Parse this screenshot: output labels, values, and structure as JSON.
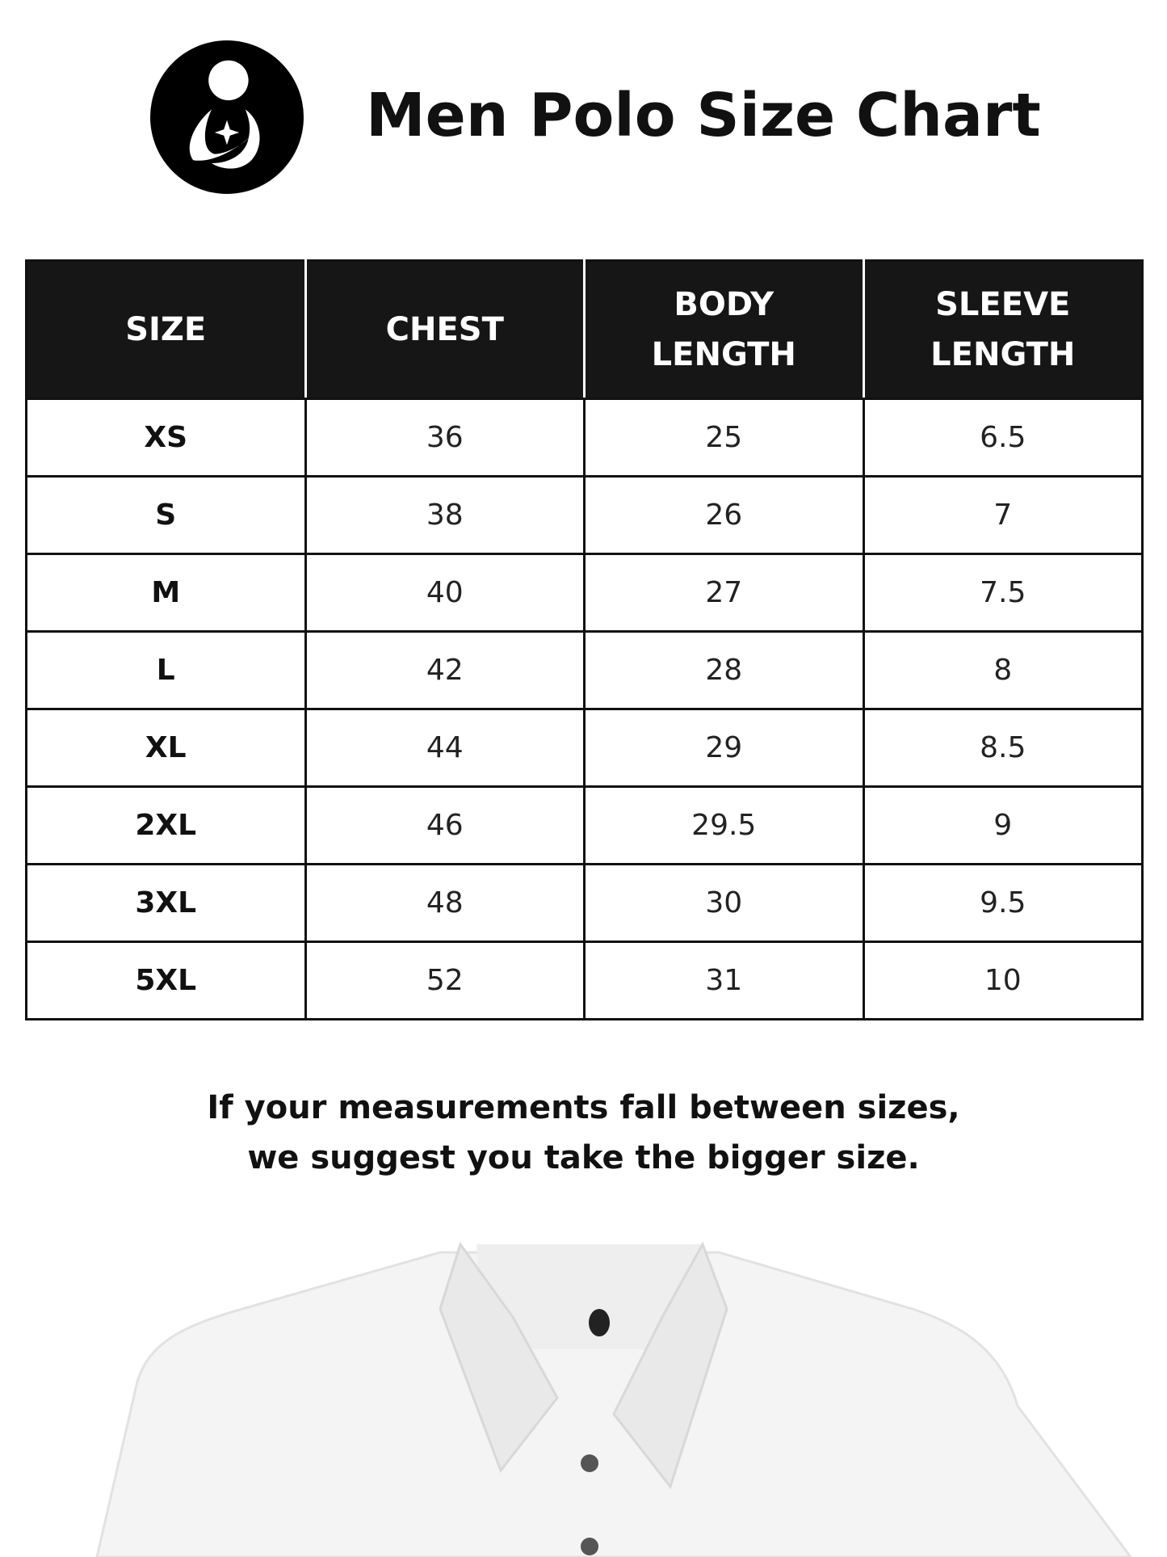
{
  "header": {
    "title": "Men Polo Size Chart",
    "logo": "mother-child-logo"
  },
  "table": {
    "columns": [
      [
        "SIZE"
      ],
      [
        "CHEST"
      ],
      [
        "BODY",
        "LENGTH"
      ],
      [
        "SLEEVE",
        "LENGTH"
      ]
    ],
    "rows": [
      [
        "XS",
        "36",
        "25",
        "6.5"
      ],
      [
        "S",
        "38",
        "26",
        "7"
      ],
      [
        "M",
        "40",
        "27",
        "7.5"
      ],
      [
        "L",
        "42",
        "28",
        "8"
      ],
      [
        "XL",
        "44",
        "29",
        "8.5"
      ],
      [
        "2XL",
        "46",
        "29.5",
        "9"
      ],
      [
        "3XL",
        "48",
        "30",
        "9.5"
      ],
      [
        "5XL",
        "52",
        "31",
        "10"
      ]
    ]
  },
  "note": {
    "line1": "If your measurements fall between sizes,",
    "line2": "we suggest you take the bigger size."
  },
  "colors": {
    "header_bg": "#161616",
    "text": "#111111"
  }
}
